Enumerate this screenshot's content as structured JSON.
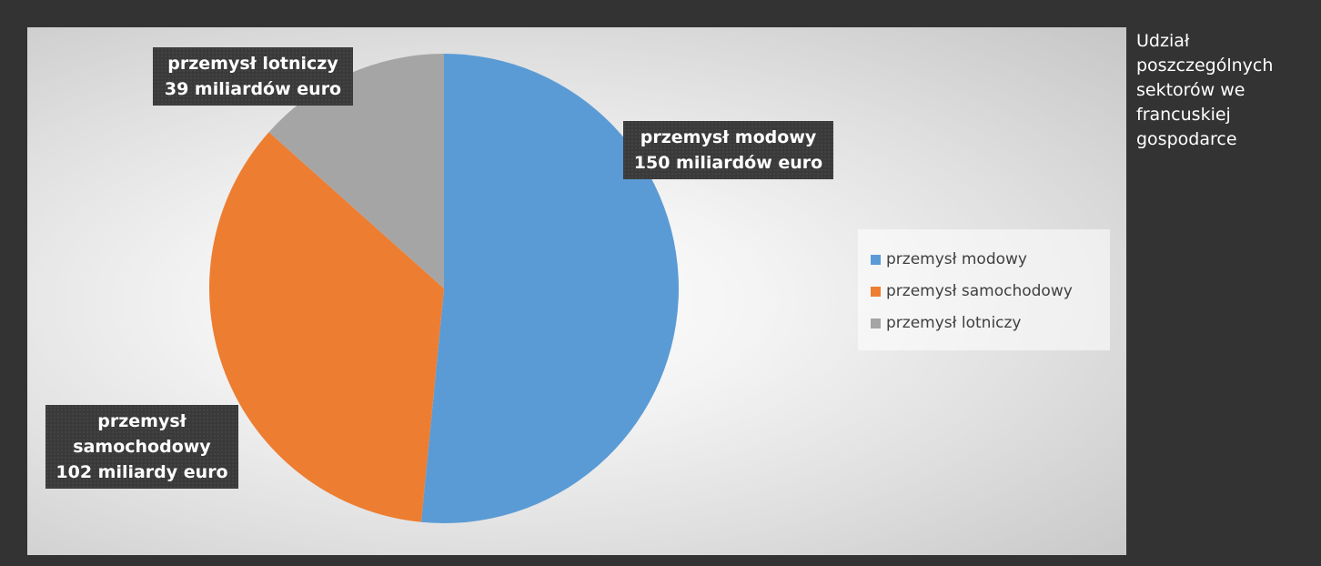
{
  "caption": [
    "Udział",
    "poszczególnych",
    "sektorów we",
    "francuskiej",
    "gospodarce"
  ],
  "chart_data": {
    "type": "pie",
    "unit": "miliardów euro",
    "slices": [
      {
        "name": "przemysł modowy",
        "value": 150,
        "color": "#5b9bd5",
        "label_lines": [
          "przemysł modowy",
          "150 miliardów euro"
        ]
      },
      {
        "name": "przemysł samochodowy",
        "value": 102,
        "color": "#ed7d31",
        "label_lines": [
          "przemysł",
          "samochodowy",
          "102 miliardy euro"
        ]
      },
      {
        "name": "przemysł lotniczy",
        "value": 39,
        "color": "#a5a5a5",
        "label_lines": [
          "przemysł lotniczy",
          "39 miliardów euro"
        ]
      }
    ],
    "legend": {
      "placement": "right",
      "items": [
        "przemysł modowy",
        "przemysł samochodowy",
        "przemysł lotniczy"
      ]
    },
    "start_angle": "12 o'clock",
    "direction": "clockwise"
  }
}
